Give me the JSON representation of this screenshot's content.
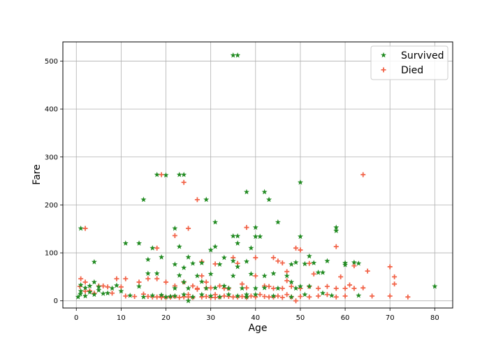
{
  "chart_data": {
    "type": "scatter",
    "title": "",
    "xlabel": "Age",
    "ylabel": "Fare",
    "xlim": [
      -3.0,
      84.0
    ],
    "ylim": [
      -15,
      540
    ],
    "xticks": [
      0,
      10,
      20,
      30,
      40,
      50,
      60,
      70,
      80
    ],
    "yticks": [
      0,
      100,
      200,
      300,
      400,
      500
    ],
    "grid": true,
    "legend_position": "top-right",
    "series": [
      {
        "name": "Survived",
        "marker": "star",
        "color": "#228b22",
        "points": [
          [
            35,
            512
          ],
          [
            36,
            512
          ],
          [
            80,
            30
          ],
          [
            50,
            247
          ],
          [
            18,
            263
          ],
          [
            20,
            262
          ],
          [
            23,
            263
          ],
          [
            24,
            263
          ],
          [
            15,
            211
          ],
          [
            29,
            211
          ],
          [
            38,
            227
          ],
          [
            42,
            227
          ],
          [
            43,
            211
          ],
          [
            1,
            151
          ],
          [
            22,
            151
          ],
          [
            31,
            164
          ],
          [
            45,
            164
          ],
          [
            11,
            120
          ],
          [
            14,
            120
          ],
          [
            23,
            113
          ],
          [
            35,
            135
          ],
          [
            36,
            135
          ],
          [
            40,
            134
          ],
          [
            41,
            134
          ],
          [
            50,
            134
          ],
          [
            58,
            153
          ],
          [
            58,
            146
          ],
          [
            4,
            81
          ],
          [
            16,
            86
          ],
          [
            17,
            110
          ],
          [
            19,
            91
          ],
          [
            22,
            76
          ],
          [
            24,
            69
          ],
          [
            25,
            91
          ],
          [
            26,
            78
          ],
          [
            28,
            79
          ],
          [
            30,
            106
          ],
          [
            31,
            113
          ],
          [
            33,
            90
          ],
          [
            35,
            83
          ],
          [
            36,
            120
          ],
          [
            38,
            82
          ],
          [
            39,
            110
          ],
          [
            40,
            153
          ],
          [
            42,
            52
          ],
          [
            44,
            57
          ],
          [
            48,
            76
          ],
          [
            49,
            80
          ],
          [
            51,
            77
          ],
          [
            52,
            93
          ],
          [
            53,
            79
          ],
          [
            55,
            59
          ],
          [
            56,
            83
          ],
          [
            60,
            79
          ],
          [
            62,
            80
          ],
          [
            63,
            78
          ],
          [
            1,
            20
          ],
          [
            2,
            27
          ],
          [
            3,
            31
          ],
          [
            4,
            39
          ],
          [
            5,
            29
          ],
          [
            6,
            15
          ],
          [
            8,
            26
          ],
          [
            9,
            32
          ],
          [
            12,
            11
          ],
          [
            14,
            30
          ],
          [
            16,
            57
          ],
          [
            18,
            57
          ],
          [
            19,
            12
          ],
          [
            21,
            9
          ],
          [
            22,
            26
          ],
          [
            23,
            53
          ],
          [
            24,
            39
          ],
          [
            25,
            26
          ],
          [
            27,
            52
          ],
          [
            28,
            40
          ],
          [
            29,
            26
          ],
          [
            30,
            56
          ],
          [
            31,
            27
          ],
          [
            32,
            76
          ],
          [
            33,
            31
          ],
          [
            34,
            26
          ],
          [
            35,
            52
          ],
          [
            36,
            71
          ],
          [
            37,
            26
          ],
          [
            38,
            13
          ],
          [
            39,
            56
          ],
          [
            40,
            26
          ],
          [
            42,
            27
          ],
          [
            45,
            26
          ],
          [
            47,
            52
          ],
          [
            48,
            39
          ],
          [
            49,
            26
          ],
          [
            50,
            30
          ],
          [
            51,
            13
          ],
          [
            52,
            30
          ],
          [
            54,
            59
          ],
          [
            55,
            16
          ],
          [
            57,
            11
          ],
          [
            60,
            75
          ],
          [
            63,
            11
          ],
          [
            0.4,
            8
          ],
          [
            0.9,
            14
          ],
          [
            1,
            33
          ],
          [
            2,
            10
          ],
          [
            3,
            18
          ],
          [
            4,
            13
          ],
          [
            5,
            22
          ],
          [
            7,
            16
          ],
          [
            10,
            20
          ],
          [
            15,
            8
          ],
          [
            17,
            11
          ],
          [
            20,
            8
          ],
          [
            22,
            10
          ],
          [
            24,
            13
          ],
          [
            26,
            8
          ],
          [
            28,
            13
          ],
          [
            30,
            10
          ],
          [
            32,
            8
          ],
          [
            34,
            13
          ],
          [
            36,
            10
          ],
          [
            38,
            8
          ],
          [
            40,
            13
          ],
          [
            44,
            10
          ],
          [
            48,
            8
          ],
          [
            25,
            0
          ]
        ]
      },
      {
        "name": "Died",
        "marker": "plus",
        "color": "#f26449",
        "points": [
          [
            64,
            263
          ],
          [
            19,
            263
          ],
          [
            24,
            247
          ],
          [
            27,
            211
          ],
          [
            2,
            151
          ],
          [
            22,
            136
          ],
          [
            25,
            151
          ],
          [
            38,
            153
          ],
          [
            58,
            113
          ],
          [
            46,
            79
          ],
          [
            47,
            61
          ],
          [
            49,
            110
          ],
          [
            50,
            106
          ],
          [
            18,
            110
          ],
          [
            28,
            82
          ],
          [
            31,
            77
          ],
          [
            35,
            90
          ],
          [
            40,
            90
          ],
          [
            44,
            90
          ],
          [
            45,
            83
          ],
          [
            52,
            78
          ],
          [
            62,
            73
          ],
          [
            65,
            62
          ],
          [
            70,
            71
          ],
          [
            71,
            50
          ],
          [
            71,
            35
          ],
          [
            1,
            46
          ],
          [
            2,
            39
          ],
          [
            3,
            21
          ],
          [
            5,
            31
          ],
          [
            7,
            29
          ],
          [
            9,
            46
          ],
          [
            11,
            46
          ],
          [
            14,
            39
          ],
          [
            16,
            46
          ],
          [
            18,
            46
          ],
          [
            20,
            39
          ],
          [
            22,
            31
          ],
          [
            24,
            39
          ],
          [
            26,
            31
          ],
          [
            28,
            52
          ],
          [
            30,
            27
          ],
          [
            32,
            31
          ],
          [
            34,
            26
          ],
          [
            36,
            78
          ],
          [
            38,
            27
          ],
          [
            40,
            52
          ],
          [
            42,
            31
          ],
          [
            44,
            26
          ],
          [
            46,
            26
          ],
          [
            48,
            30
          ],
          [
            50,
            26
          ],
          [
            52,
            30
          ],
          [
            54,
            26
          ],
          [
            56,
            30
          ],
          [
            58,
            26
          ],
          [
            60,
            26
          ],
          [
            62,
            26
          ],
          [
            64,
            27
          ],
          [
            66,
            10
          ],
          [
            70,
            10
          ],
          [
            74,
            8
          ],
          [
            61,
            33
          ],
          [
            59,
            50
          ],
          [
            53,
            56
          ],
          [
            47,
            42
          ],
          [
            43,
            30
          ],
          [
            37,
            35
          ],
          [
            33,
            26
          ],
          [
            29,
            39
          ],
          [
            27,
            24
          ],
          [
            25,
            13
          ],
          [
            23,
            7
          ],
          [
            21,
            8
          ],
          [
            19,
            7
          ],
          [
            17,
            8
          ],
          [
            15,
            14
          ],
          [
            13,
            9
          ],
          [
            11,
            10
          ],
          [
            10,
            29
          ],
          [
            8,
            16
          ],
          [
            6,
            31
          ],
          [
            4,
            16
          ],
          [
            2,
            20
          ],
          [
            0.8,
            30
          ],
          [
            20,
            7
          ],
          [
            21,
            8
          ],
          [
            22,
            9
          ],
          [
            24,
            8
          ],
          [
            26,
            7
          ],
          [
            28,
            8
          ],
          [
            30,
            7
          ],
          [
            32,
            8
          ],
          [
            34,
            9
          ],
          [
            36,
            8
          ],
          [
            38,
            7
          ],
          [
            40,
            8
          ],
          [
            42,
            9
          ],
          [
            44,
            8
          ],
          [
            46,
            7
          ],
          [
            48,
            8
          ],
          [
            50,
            9
          ],
          [
            52,
            8
          ],
          [
            54,
            10
          ],
          [
            56,
            13
          ],
          [
            58,
            8
          ],
          [
            60,
            10
          ],
          [
            16,
            9
          ],
          [
            18,
            8
          ],
          [
            19,
            10
          ],
          [
            25,
            8
          ],
          [
            29,
            9
          ],
          [
            31,
            7
          ],
          [
            33,
            10
          ],
          [
            35,
            8
          ],
          [
            37,
            9
          ],
          [
            39,
            10
          ],
          [
            41,
            13
          ],
          [
            43,
            8
          ],
          [
            45,
            10
          ],
          [
            47,
            13
          ],
          [
            49,
            0
          ],
          [
            27,
            26
          ],
          [
            29,
            27
          ],
          [
            31,
            13
          ]
        ]
      }
    ]
  }
}
